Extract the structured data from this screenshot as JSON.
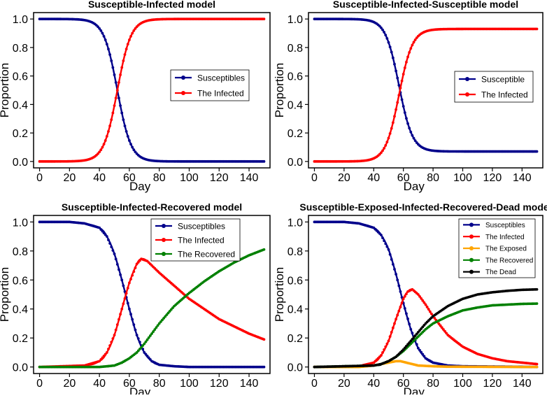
{
  "chart_data": [
    {
      "type": "line",
      "title": "Susceptible-Infected model",
      "xlabel": "Day",
      "ylabel": "Proportion",
      "xlim": [
        0,
        150
      ],
      "ylim": [
        0,
        1.0
      ],
      "xticks": [
        0,
        20,
        40,
        60,
        80,
        100,
        120,
        140
      ],
      "yticks": [
        0.0,
        0.2,
        0.4,
        0.6,
        0.8,
        1.0
      ],
      "xtick_labels": [
        "0",
        "20",
        "40",
        "60",
        "80",
        "100",
        "120",
        "140"
      ],
      "ytick_labels": [
        "0.0",
        "0.2",
        "0.4",
        "0.6",
        "0.8",
        "1.0"
      ],
      "legend_position": "center-right",
      "series": [
        {
          "name": "Susceptibles",
          "color": "#00008b",
          "model": {
            "kind": "logistic",
            "from": 1.0,
            "to": 0.0,
            "mid": 52,
            "k": 0.22
          }
        },
        {
          "name": "The Infected",
          "color": "#ff0000",
          "model": {
            "kind": "logistic",
            "from": 0.0,
            "to": 1.0,
            "mid": 52,
            "k": 0.22
          }
        }
      ]
    },
    {
      "type": "line",
      "title": "Susceptible-Infected-Susceptible model",
      "xlabel": "Day",
      "ylabel": "Proportion",
      "xlim": [
        0,
        150
      ],
      "ylim": [
        0,
        1.0
      ],
      "xticks": [
        0,
        20,
        40,
        60,
        80,
        100,
        120,
        140
      ],
      "yticks": [
        0.0,
        0.2,
        0.4,
        0.6,
        0.8,
        1.0
      ],
      "xtick_labels": [
        "0",
        "20",
        "40",
        "60",
        "80",
        "100",
        "120",
        "140"
      ],
      "ytick_labels": [
        "0.0",
        "0.2",
        "0.4",
        "0.6",
        "0.8",
        "1.0"
      ],
      "legend_position": "center-right",
      "series": [
        {
          "name": "Susceptible",
          "color": "#00008b",
          "model": {
            "kind": "logistic",
            "from": 1.0,
            "to": 0.07,
            "mid": 57,
            "k": 0.22
          }
        },
        {
          "name": "The Infected",
          "color": "#ff0000",
          "model": {
            "kind": "logistic",
            "from": 0.0,
            "to": 0.93,
            "mid": 57,
            "k": 0.22
          }
        }
      ]
    },
    {
      "type": "line",
      "title": "Susceptible-Infected-Recovered model",
      "xlabel": "Day",
      "ylabel": "Proportion",
      "xlim": [
        0,
        150
      ],
      "ylim": [
        0,
        1.0
      ],
      "xticks": [
        0,
        20,
        40,
        60,
        80,
        100,
        120,
        140
      ],
      "yticks": [
        0.0,
        0.2,
        0.4,
        0.6,
        0.8,
        1.0
      ],
      "xtick_labels": [
        "0",
        "20",
        "40",
        "60",
        "80",
        "100",
        "120",
        "140"
      ],
      "ytick_labels": [
        "0.0",
        "0.2",
        "0.4",
        "0.6",
        "0.8",
        "1.0"
      ],
      "legend_position": "top-right",
      "series": [
        {
          "name": "Susceptibles",
          "color": "#00008b",
          "x": [
            0,
            20,
            30,
            40,
            45,
            50,
            55,
            60,
            65,
            70,
            75,
            80,
            90,
            100,
            120,
            150
          ],
          "y": [
            1.0,
            1.0,
            0.99,
            0.96,
            0.9,
            0.78,
            0.6,
            0.4,
            0.22,
            0.1,
            0.04,
            0.015,
            0.005,
            0.0,
            0.0,
            0.0
          ]
        },
        {
          "name": "The Infected",
          "color": "#ff0000",
          "x": [
            0,
            30,
            40,
            45,
            50,
            55,
            60,
            65,
            68,
            72,
            80,
            90,
            100,
            110,
            120,
            130,
            140,
            150
          ],
          "y": [
            0.0,
            0.01,
            0.04,
            0.1,
            0.22,
            0.4,
            0.58,
            0.71,
            0.745,
            0.73,
            0.65,
            0.56,
            0.47,
            0.4,
            0.33,
            0.28,
            0.23,
            0.19
          ]
        },
        {
          "name": "The Recovered",
          "color": "#008000",
          "x": [
            0,
            40,
            50,
            55,
            60,
            65,
            70,
            75,
            80,
            90,
            100,
            110,
            120,
            130,
            140,
            150
          ],
          "y": [
            0.0,
            0.0,
            0.01,
            0.03,
            0.06,
            0.1,
            0.16,
            0.23,
            0.3,
            0.42,
            0.51,
            0.59,
            0.66,
            0.72,
            0.77,
            0.81
          ]
        }
      ]
    },
    {
      "type": "line",
      "title": "Susceptible-Exposed-Infected-Recovered-Dead model",
      "xlabel": "Day",
      "ylabel": "Proportion",
      "xlim": [
        0,
        150
      ],
      "ylim": [
        0,
        1.0
      ],
      "xticks": [
        0,
        20,
        40,
        60,
        80,
        100,
        120,
        140
      ],
      "yticks": [
        0.0,
        0.2,
        0.4,
        0.6,
        0.8,
        1.0
      ],
      "xtick_labels": [
        "0",
        "20",
        "40",
        "60",
        "80",
        "100",
        "120",
        "140"
      ],
      "ytick_labels": [
        "0.0",
        "0.2",
        "0.4",
        "0.6",
        "0.8",
        "1.0"
      ],
      "legend_position": "top-right",
      "series": [
        {
          "name": "Susceptibles",
          "color": "#00008b",
          "x": [
            0,
            20,
            30,
            40,
            45,
            50,
            55,
            60,
            65,
            70,
            75,
            80,
            90,
            100,
            150
          ],
          "y": [
            1.0,
            1.0,
            0.99,
            0.96,
            0.91,
            0.81,
            0.64,
            0.44,
            0.26,
            0.13,
            0.06,
            0.03,
            0.01,
            0.005,
            0.0
          ]
        },
        {
          "name": "The Infected",
          "color": "#ff0000",
          "x": [
            0,
            30,
            40,
            45,
            50,
            55,
            60,
            63,
            66,
            70,
            75,
            80,
            90,
            100,
            110,
            120,
            130,
            140,
            150
          ],
          "y": [
            0.0,
            0.005,
            0.03,
            0.08,
            0.18,
            0.33,
            0.47,
            0.52,
            0.535,
            0.5,
            0.43,
            0.35,
            0.22,
            0.14,
            0.09,
            0.06,
            0.04,
            0.03,
            0.02
          ]
        },
        {
          "name": "The Exposed",
          "color": "#ffa500",
          "x": [
            0,
            30,
            40,
            45,
            50,
            55,
            58,
            62,
            66,
            70,
            80,
            90,
            150
          ],
          "y": [
            0.0,
            0.0,
            0.01,
            0.02,
            0.03,
            0.04,
            0.04,
            0.03,
            0.02,
            0.01,
            0.005,
            0.002,
            0.0
          ]
        },
        {
          "name": "The Recovered",
          "color": "#008000",
          "x": [
            0,
            40,
            45,
            50,
            55,
            60,
            65,
            70,
            75,
            80,
            90,
            100,
            110,
            120,
            130,
            140,
            150
          ],
          "y": [
            0.0,
            0.01,
            0.02,
            0.04,
            0.07,
            0.11,
            0.16,
            0.21,
            0.26,
            0.3,
            0.35,
            0.39,
            0.41,
            0.425,
            0.43,
            0.435,
            0.437
          ]
        },
        {
          "name": "The Dead",
          "color": "#000000",
          "x": [
            0,
            40,
            45,
            50,
            55,
            60,
            65,
            70,
            75,
            80,
            90,
            100,
            110,
            120,
            130,
            140,
            150
          ],
          "y": [
            0.0,
            0.01,
            0.02,
            0.04,
            0.07,
            0.12,
            0.18,
            0.24,
            0.3,
            0.35,
            0.42,
            0.47,
            0.5,
            0.515,
            0.525,
            0.532,
            0.535
          ]
        }
      ]
    }
  ]
}
